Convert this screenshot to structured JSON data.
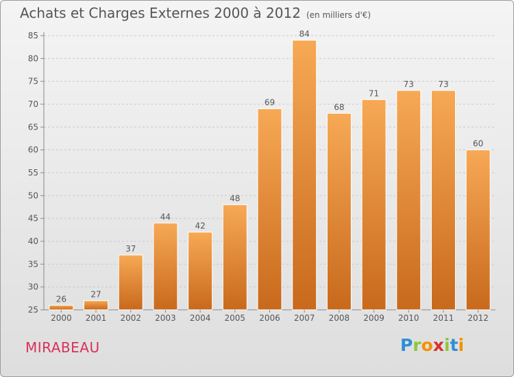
{
  "title": "Achats et Charges Externes 2000 à 2012",
  "unit_note": "(en milliers d'€)",
  "commune": "MIRABEAU",
  "logo": {
    "letters": [
      "P",
      "r",
      "o",
      "x",
      "i",
      "t",
      "i"
    ],
    "colors": [
      "#2f8fd6",
      "#8cc63f",
      "#f39200",
      "#d6322e",
      "#8cc63f",
      "#2f8fd6",
      "#f39200"
    ]
  },
  "colors": {
    "bar_top": "#f7a955",
    "bar_bottom": "#c8691c",
    "text": "#555555",
    "commune": "#d8305a"
  },
  "chart_data": {
    "type": "bar",
    "categories": [
      "2000",
      "2001",
      "2002",
      "2003",
      "2004",
      "2005",
      "2006",
      "2007",
      "2008",
      "2009",
      "2010",
      "2011",
      "2012"
    ],
    "values": [
      26,
      27,
      37,
      44,
      42,
      48,
      69,
      84,
      68,
      71,
      73,
      73,
      60
    ],
    "ylim": [
      25,
      85
    ],
    "yticks": [
      25,
      30,
      35,
      40,
      45,
      50,
      55,
      60,
      65,
      70,
      75,
      80,
      85
    ],
    "grid": "horizontal-dashed",
    "data_labels": true
  }
}
